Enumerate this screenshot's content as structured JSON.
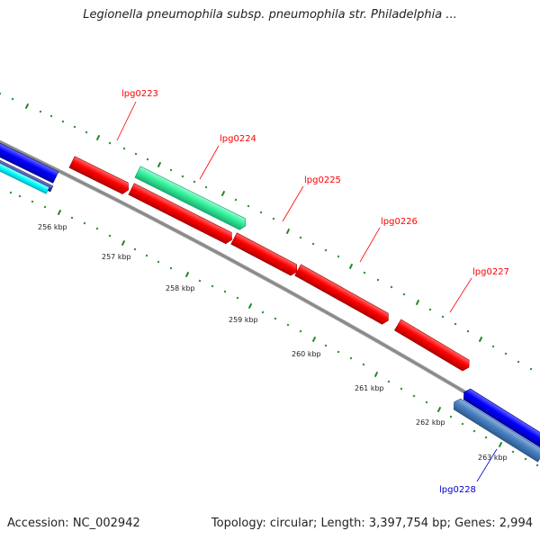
{
  "title": "Legionella pneumophila subsp. pneumophila str. Philadelphia ...",
  "accession": "Accession: NC_002942",
  "summary": "Topology: circular; Length: 3,397,754 bp; Genes: 2,994",
  "colors": {
    "forward_gene": "#ff0000",
    "reverse_gene": "#0000ff",
    "forward_alt": "#33ee99",
    "reverse_alt": "#4a80c0",
    "backbone": "#888888",
    "tick": "#228822"
  },
  "kbp_labels": [
    "256 kbp",
    "257 kbp",
    "258 kbp",
    "259 kbp",
    "260 kbp",
    "261 kbp",
    "262 kbp",
    "263 kbp"
  ],
  "genes": [
    {
      "label": "lpg0223",
      "strand": "forward"
    },
    {
      "label": "lpg0224",
      "strand": "forward"
    },
    {
      "label": "lpg0225",
      "strand": "forward"
    },
    {
      "label": "lpg0226",
      "strand": "forward"
    },
    {
      "label": "lpg0227",
      "strand": "forward"
    },
    {
      "label": "lpg0228",
      "strand": "reverse"
    }
  ]
}
